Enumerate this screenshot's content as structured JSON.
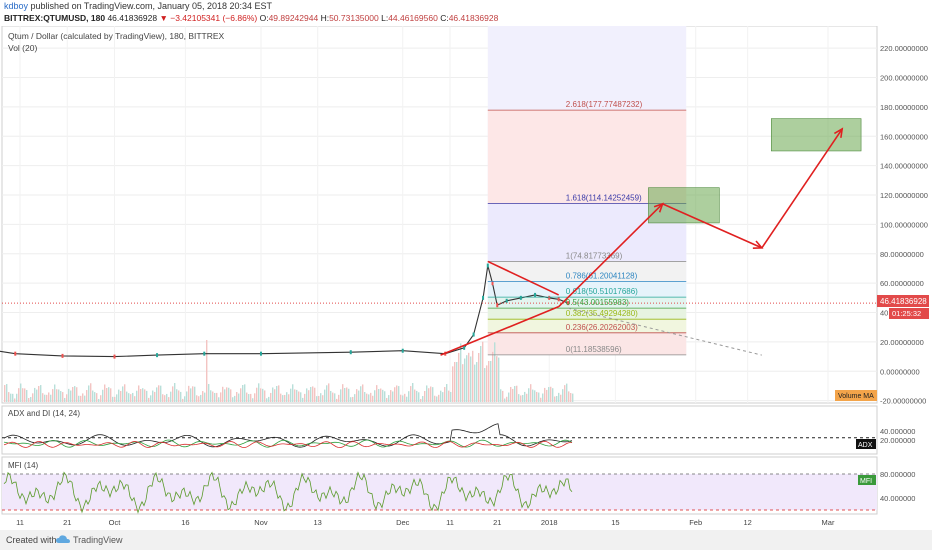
{
  "header": {
    "author": "kdboy",
    "published_text": "published on TradingView.com, January 05, 2018 20:34 EST",
    "symbol": "BITTREX:QTUMUSD, 180",
    "last": "46.41836928",
    "change": "▼ −3.42105341 (−6.86%)",
    "open_label": "O:",
    "open": "49.89242944",
    "high_label": "H:",
    "high": "50.73135000",
    "low_label": "L:",
    "low": "44.46169560",
    "close_label": "C:",
    "close": "46.41836928"
  },
  "main_pane": {
    "title": "Qtum / Dollar (calculated by TradingView), 180, BITTREX",
    "vol_label": "Vol (20)",
    "price_label": "46.41836928",
    "countdown_label": "01:25:32",
    "volume_ma_label": "Volume MA"
  },
  "adx_pane": {
    "title": "ADX and DI (14, 24)",
    "badge": "ADX",
    "ticks": [
      {
        "label": "40.000000",
        "value": 40
      },
      {
        "label": "20.000000",
        "value": 20
      }
    ]
  },
  "mfi_pane": {
    "title": "MFI (14)",
    "badge": "MFI",
    "ticks": [
      {
        "label": "80.000000",
        "value": 80
      },
      {
        "label": "40.000000",
        "value": 40
      }
    ]
  },
  "footer": {
    "created_with": "Created with",
    "brand": "TradingView"
  },
  "colors": {
    "up": "#26a69a",
    "down": "#ef5350",
    "drawing": "#e02020",
    "green_box": "#6aa84f",
    "fib_range": "#d6d6f5"
  },
  "chart_data": {
    "type": "candlestick",
    "title": "Qtum / Dollar (calculated by TradingView), 180, BITTREX",
    "ylim": [
      -20,
      225
    ],
    "price_axis": [
      {
        "label": "220.00000000",
        "value": 220
      },
      {
        "label": "200.00000000",
        "value": 200
      },
      {
        "label": "180.00000000",
        "value": 180
      },
      {
        "label": "160.00000000",
        "value": 160
      },
      {
        "label": "140.00000000",
        "value": 140
      },
      {
        "label": "120.00000000",
        "value": 120
      },
      {
        "label": "100.00000000",
        "value": 100
      },
      {
        "label": "80.00000000",
        "value": 80
      },
      {
        "label": "60.00000000",
        "value": 60
      },
      {
        "label": "40",
        "value": 40
      },
      {
        "label": "20.00000000",
        "value": 20
      },
      {
        "label": "0.00000000",
        "value": 0
      },
      {
        "label": "-20.00000000",
        "value": -20
      }
    ],
    "time_axis": [
      {
        "label": "11",
        "date": "2017-09-11"
      },
      {
        "label": "21",
        "date": "2017-09-21"
      },
      {
        "label": "Oct",
        "date": "2017-10-01"
      },
      {
        "label": "16",
        "date": "2017-10-16"
      },
      {
        "label": "Nov",
        "date": "2017-11-01"
      },
      {
        "label": "13",
        "date": "2017-11-13"
      },
      {
        "label": "Dec",
        "date": "2017-12-01"
      },
      {
        "label": "11",
        "date": "2017-12-11"
      },
      {
        "label": "21",
        "date": "2017-12-21"
      },
      {
        "label": "2018",
        "date": "2018-01-01"
      },
      {
        "label": "15",
        "date": "2018-01-15"
      },
      {
        "label": "Feb",
        "date": "2018-02-01"
      },
      {
        "label": "12",
        "date": "2018-02-12"
      },
      {
        "label": "Mar",
        "date": "2018-03-01"
      }
    ],
    "price_path": [
      {
        "date": "2017-09-06",
        "price": 14
      },
      {
        "date": "2017-09-10",
        "price": 12
      },
      {
        "date": "2017-09-20",
        "price": 10.5
      },
      {
        "date": "2017-10-01",
        "price": 10
      },
      {
        "date": "2017-10-10",
        "price": 11
      },
      {
        "date": "2017-10-20",
        "price": 12
      },
      {
        "date": "2017-11-01",
        "price": 12
      },
      {
        "date": "2017-11-20",
        "price": 13
      },
      {
        "date": "2017-12-01",
        "price": 14
      },
      {
        "date": "2017-12-10",
        "price": 12
      },
      {
        "date": "2017-12-14",
        "price": 16
      },
      {
        "date": "2017-12-16",
        "price": 25
      },
      {
        "date": "2017-12-18",
        "price": 50
      },
      {
        "date": "2017-12-19",
        "price": 72
      },
      {
        "date": "2017-12-20",
        "price": 60
      },
      {
        "date": "2017-12-21",
        "price": 45
      },
      {
        "date": "2017-12-23",
        "price": 48
      },
      {
        "date": "2017-12-26",
        "price": 50
      },
      {
        "date": "2017-12-29",
        "price": 52
      },
      {
        "date": "2018-01-01",
        "price": 50
      },
      {
        "date": "2018-01-03",
        "price": 49
      },
      {
        "date": "2018-01-05",
        "price": 46.4
      }
    ],
    "fib_levels": [
      {
        "label": "2.618(177.77487232)",
        "value": 177.77,
        "color": "#c0504d"
      },
      {
        "label": "1.618(114.14252459)",
        "value": 114.14,
        "color": "#3a3aa8"
      },
      {
        "label": "1(74.81773369)",
        "value": 74.82,
        "color": "#888888"
      },
      {
        "label": "0.786(61.20041128)",
        "value": 61.2,
        "color": "#2e86c1"
      },
      {
        "label": "0.618(50.51017686)",
        "value": 50.51,
        "color": "#26a69a"
      },
      {
        "label": "0.5(43.00155983)",
        "value": 43.0,
        "color": "#3d9e3d"
      },
      {
        "label": "0.382(35.49294280)",
        "value": 35.49,
        "color": "#9ab81a"
      },
      {
        "label": "0.236(26.20262003)",
        "value": 26.2,
        "color": "#c0504d"
      },
      {
        "label": "0(11.18538596)",
        "value": 11.19,
        "color": "#888888"
      }
    ],
    "annotations": {
      "triangle": [
        {
          "date": "2017-12-19",
          "price": 74.8
        },
        {
          "date": "2018-01-03",
          "price": 52
        },
        {
          "date": "2017-12-09",
          "price": 11
        },
        {
          "date": "2018-01-03",
          "price": 44
        }
      ],
      "projection_arrows": [
        {
          "date": "2018-01-03",
          "price": 44
        },
        {
          "date": "2018-01-25",
          "price": 114
        },
        {
          "date": "2018-02-15",
          "price": 84
        },
        {
          "date": "2018-03-04",
          "price": 165
        }
      ],
      "target_boxes": [
        {
          "from": "2018-01-22",
          "to": "2018-02-06",
          "low": 101,
          "high": 125
        },
        {
          "from": "2018-02-17",
          "to": "2018-03-08",
          "low": 150,
          "high": 172
        }
      ],
      "dashed_projection": [
        {
          "date": "2018-01-05",
          "price": 43
        },
        {
          "date": "2018-02-15",
          "price": 11
        }
      ]
    }
  }
}
